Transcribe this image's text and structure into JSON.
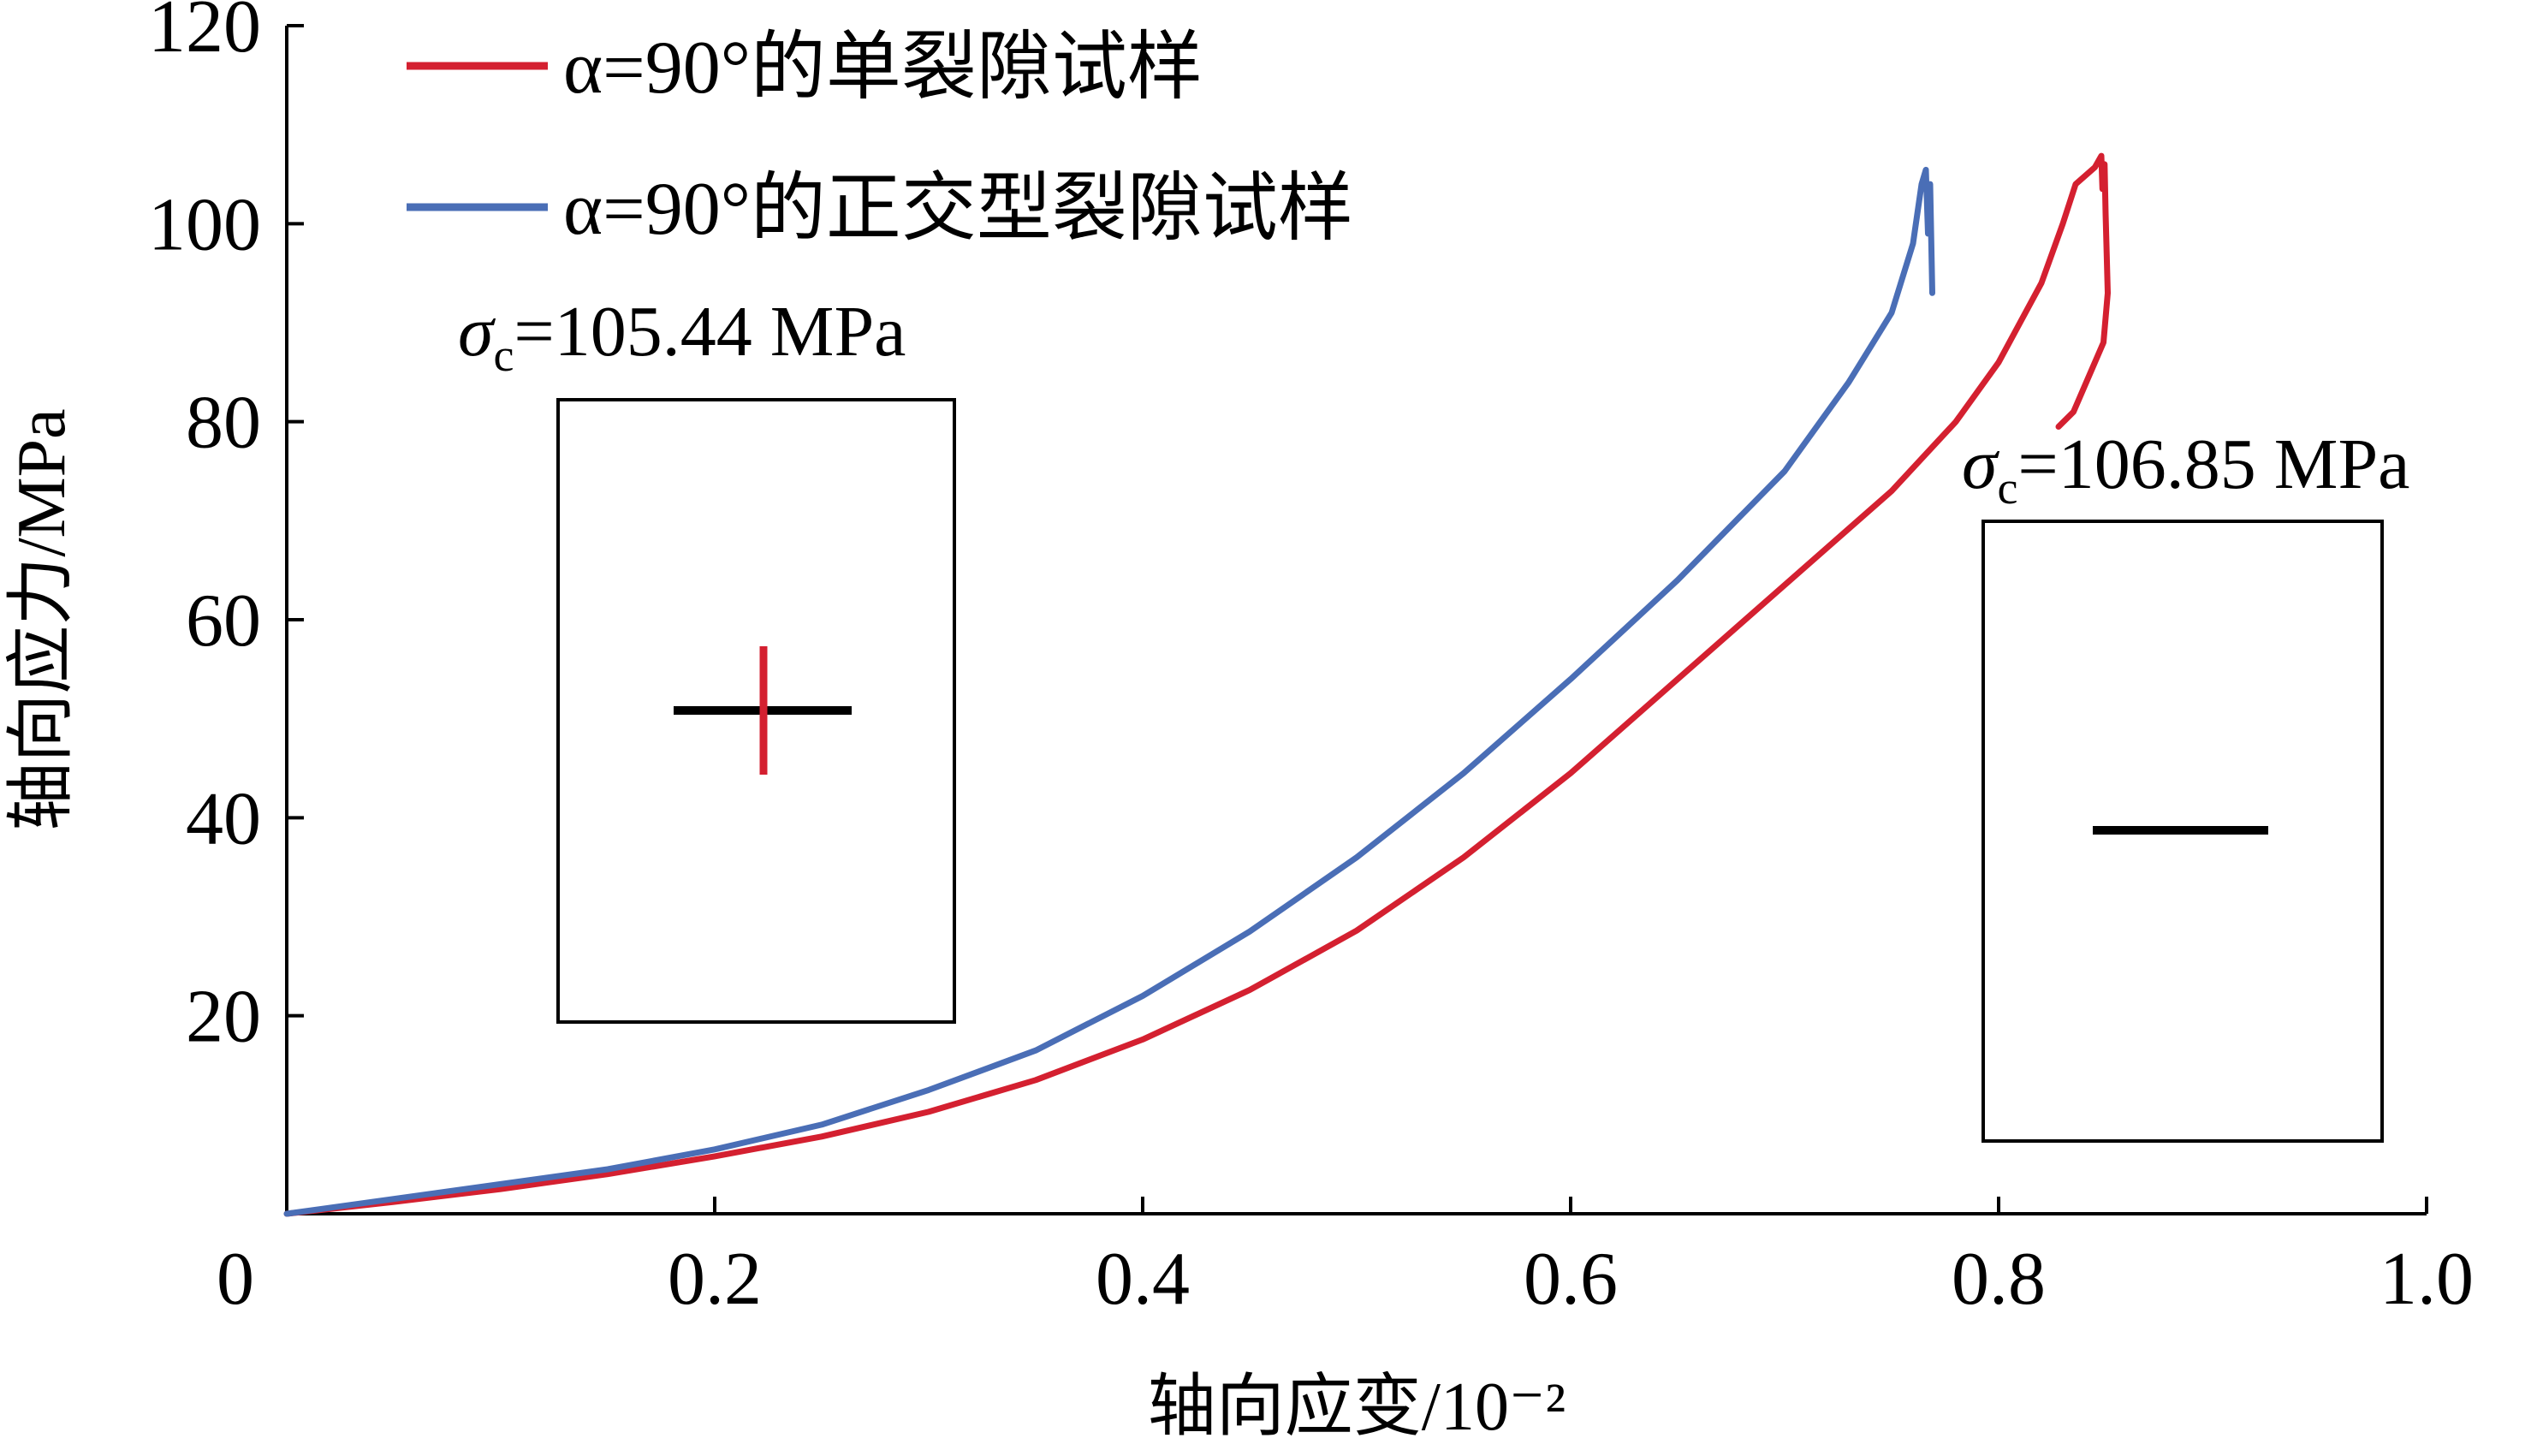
{
  "chart_data": {
    "type": "line",
    "xlabel": "轴向应变/10⁻²",
    "ylabel": "轴向应力/MPa",
    "xlim": [
      0,
      1.0
    ],
    "ylim": [
      0,
      120
    ],
    "x_ticks": [
      "0",
      "0.2",
      "0.4",
      "0.6",
      "0.8",
      "1.0"
    ],
    "y_ticks": [
      "20",
      "40",
      "60",
      "80",
      "100",
      "120"
    ],
    "grid": false,
    "legend_position": "top-left",
    "series": [
      {
        "name": "α=90°的单裂隙试样",
        "color": "#d42030",
        "points": [
          [
            0.0,
            0.0
          ],
          [
            0.05,
            1.2
          ],
          [
            0.1,
            2.5
          ],
          [
            0.15,
            4.0
          ],
          [
            0.2,
            5.8
          ],
          [
            0.25,
            7.8
          ],
          [
            0.3,
            10.3
          ],
          [
            0.35,
            13.5
          ],
          [
            0.4,
            17.6
          ],
          [
            0.45,
            22.6
          ],
          [
            0.5,
            28.6
          ],
          [
            0.55,
            36.0
          ],
          [
            0.6,
            44.5
          ],
          [
            0.65,
            54.0
          ],
          [
            0.7,
            63.5
          ],
          [
            0.75,
            73.0
          ],
          [
            0.78,
            80.0
          ],
          [
            0.8,
            86.0
          ],
          [
            0.82,
            94.0
          ],
          [
            0.83,
            100.0
          ],
          [
            0.836,
            104.0
          ],
          [
            0.845,
            105.7
          ],
          [
            0.848,
            106.85
          ],
          [
            0.8485,
            103.5
          ],
          [
            0.8495,
            106.0
          ],
          [
            0.85,
            101.0
          ],
          [
            0.851,
            93.0
          ],
          [
            0.849,
            88.0
          ],
          [
            0.843,
            85.0
          ],
          [
            0.835,
            81.0
          ],
          [
            0.828,
            79.5
          ]
        ]
      },
      {
        "name": "α=90°的正交型裂隙试样",
        "color": "#4a6eb6",
        "points": [
          [
            0.0,
            0.0
          ],
          [
            0.05,
            1.5
          ],
          [
            0.1,
            3.0
          ],
          [
            0.15,
            4.5
          ],
          [
            0.2,
            6.5
          ],
          [
            0.25,
            9.0
          ],
          [
            0.3,
            12.5
          ],
          [
            0.35,
            16.5
          ],
          [
            0.4,
            22.0
          ],
          [
            0.45,
            28.5
          ],
          [
            0.5,
            36.0
          ],
          [
            0.55,
            44.5
          ],
          [
            0.6,
            54.0
          ],
          [
            0.65,
            64.0
          ],
          [
            0.7,
            75.0
          ],
          [
            0.73,
            84.0
          ],
          [
            0.75,
            91.0
          ],
          [
            0.76,
            98.0
          ],
          [
            0.764,
            104.0
          ],
          [
            0.766,
            105.44
          ],
          [
            0.767,
            99.0
          ],
          [
            0.768,
            104.0
          ],
          [
            0.769,
            93.0
          ]
        ]
      }
    ],
    "annotations": [
      {
        "symbol": "σ",
        "subscript": "c",
        "text": "=105.44 MPa",
        "inset": "cross-crack"
      },
      {
        "symbol": "σ",
        "subscript": "c",
        "text": "=106.85 MPa",
        "inset": "single-crack"
      }
    ],
    "inset_colors": {
      "frame": "#000000",
      "horizontal_crack": "#000000",
      "vertical_crack": "#d42030"
    }
  }
}
